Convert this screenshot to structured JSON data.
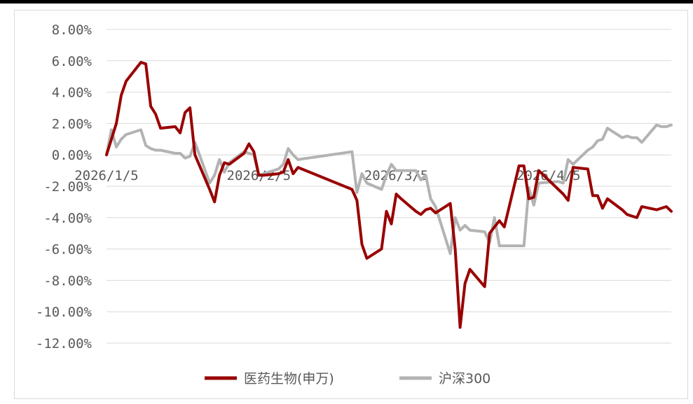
{
  "chart_data": {
    "type": "line",
    "title": "",
    "xlabel": "",
    "ylabel": "",
    "ylim": [
      -0.12,
      0.08
    ],
    "y_ticks": [
      "8.00%",
      "6.00%",
      "4.00%",
      "2.00%",
      "0.00%",
      "-2.00%",
      "-4.00%",
      "-6.00%",
      "-8.00%",
      "-10.00%",
      "-12.00%"
    ],
    "x_ticks": [
      "2026/1/5",
      "2026/2/5",
      "2026/3/5",
      "2026/4/5"
    ],
    "grid": true,
    "legend": "bottom",
    "series": [
      {
        "name": "医药生物(申万)",
        "color": "#990000",
        "x": [
          "2026-01-05",
          "2026-01-06",
          "2026-01-07",
          "2026-01-08",
          "2026-01-09",
          "2026-01-12",
          "2026-01-13",
          "2026-01-14",
          "2026-01-15",
          "2026-01-16",
          "2026-01-19",
          "2026-01-20",
          "2026-01-21",
          "2026-01-22",
          "2026-01-23",
          "2026-01-26",
          "2026-01-27",
          "2026-01-28",
          "2026-01-29",
          "2026-01-30",
          "2026-02-02",
          "2026-02-03",
          "2026-02-04",
          "2026-02-05",
          "2026-02-06",
          "2026-02-09",
          "2026-02-10",
          "2026-02-11",
          "2026-02-12",
          "2026-02-13",
          "2026-02-24",
          "2026-02-25",
          "2026-02-26",
          "2026-02-27",
          "2026-03-02",
          "2026-03-03",
          "2026-03-04",
          "2026-03-05",
          "2026-03-06",
          "2026-03-09",
          "2026-03-10",
          "2026-03-11",
          "2026-03-12",
          "2026-03-13",
          "2026-03-16",
          "2026-03-17",
          "2026-03-18",
          "2026-03-19",
          "2026-03-20",
          "2026-03-23",
          "2026-03-24",
          "2026-03-25",
          "2026-03-26",
          "2026-03-27",
          "2026-03-30",
          "2026-03-31",
          "2026-04-01",
          "2026-04-02",
          "2026-04-03",
          "2026-04-07",
          "2026-04-08",
          "2026-04-09",
          "2026-04-10",
          "2026-04-13",
          "2026-04-14",
          "2026-04-15",
          "2026-04-16",
          "2026-04-17",
          "2026-04-20",
          "2026-04-21",
          "2026-04-22",
          "2026-04-23",
          "2026-04-24",
          "2026-04-27",
          "2026-04-28",
          "2026-04-29",
          "2026-04-30"
        ],
        "values": [
          0.0,
          1.0,
          2.0,
          3.8,
          4.7,
          5.9,
          5.8,
          3.1,
          2.6,
          1.7,
          1.8,
          1.4,
          2.7,
          3.0,
          0.0,
          -2.2,
          -3.0,
          -1.3,
          -0.5,
          -0.6,
          0.1,
          0.7,
          0.2,
          -1.3,
          -1.3,
          -1.2,
          -1.1,
          -0.3,
          -1.2,
          -0.8,
          -2.2,
          -2.9,
          -5.7,
          -6.6,
          -6.0,
          -3.6,
          -4.4,
          -2.5,
          -2.8,
          -3.6,
          -3.8,
          -3.5,
          -3.4,
          -3.7,
          -3.1,
          -6.0,
          -11.0,
          -8.2,
          -7.3,
          -8.4,
          -5.0,
          -4.6,
          -4.2,
          -4.6,
          -0.7,
          -0.7,
          -2.8,
          -2.7,
          -1.0,
          -2.2,
          -2.5,
          -2.9,
          -0.8,
          -0.9,
          -2.6,
          -2.6,
          -3.4,
          -2.8,
          -3.5,
          -3.8,
          -3.9,
          -4.0,
          -3.3,
          -3.5,
          -3.4,
          -3.3,
          -3.6
        ]
      },
      {
        "name": "沪深300",
        "color": "#b3b3b3",
        "x": [
          "2026-01-05",
          "2026-01-06",
          "2026-01-07",
          "2026-01-08",
          "2026-01-09",
          "2026-01-12",
          "2026-01-13",
          "2026-01-14",
          "2026-01-15",
          "2026-01-16",
          "2026-01-19",
          "2026-01-20",
          "2026-01-21",
          "2026-01-22",
          "2026-01-23",
          "2026-01-26",
          "2026-01-27",
          "2026-01-28",
          "2026-01-29",
          "2026-01-30",
          "2026-02-02",
          "2026-02-03",
          "2026-02-04",
          "2026-02-05",
          "2026-02-06",
          "2026-02-09",
          "2026-02-10",
          "2026-02-11",
          "2026-02-12",
          "2026-02-13",
          "2026-02-24",
          "2026-02-25",
          "2026-02-26",
          "2026-02-27",
          "2026-03-02",
          "2026-03-03",
          "2026-03-04",
          "2026-03-05",
          "2026-03-06",
          "2026-03-09",
          "2026-03-10",
          "2026-03-11",
          "2026-03-12",
          "2026-03-13",
          "2026-03-16",
          "2026-03-17",
          "2026-03-18",
          "2026-03-19",
          "2026-03-20",
          "2026-03-23",
          "2026-03-24",
          "2026-03-25",
          "2026-03-26",
          "2026-03-27",
          "2026-03-30",
          "2026-03-31",
          "2026-04-01",
          "2026-04-02",
          "2026-04-03",
          "2026-04-07",
          "2026-04-08",
          "2026-04-09",
          "2026-04-10",
          "2026-04-13",
          "2026-04-14",
          "2026-04-15",
          "2026-04-16",
          "2026-04-17",
          "2026-04-20",
          "2026-04-21",
          "2026-04-22",
          "2026-04-23",
          "2026-04-24",
          "2026-04-27",
          "2026-04-28",
          "2026-04-29",
          "2026-04-30"
        ],
        "values": [
          0.0,
          1.6,
          0.5,
          1.0,
          1.3,
          1.6,
          0.6,
          0.4,
          0.3,
          0.3,
          0.1,
          0.1,
          -0.2,
          -0.1,
          0.8,
          -1.8,
          -1.3,
          -0.3,
          -1.1,
          -0.5,
          0.2,
          0.1,
          0.0,
          -1.3,
          -1.2,
          -0.9,
          -0.6,
          0.4,
          0.0,
          -0.3,
          0.2,
          -2.4,
          -1.2,
          -1.8,
          -2.2,
          -1.3,
          -0.6,
          -1.0,
          -1.0,
          -1.0,
          -1.6,
          -1.3,
          -2.8,
          -3.3,
          -6.3,
          -4.0,
          -4.8,
          -4.5,
          -4.8,
          -4.9,
          -5.6,
          -4.0,
          -5.8,
          -5.8,
          -5.8,
          -5.8,
          -2.1,
          -3.2,
          -1.8,
          -1.7,
          -1.8,
          -0.3,
          -0.6,
          0.3,
          0.5,
          0.9,
          1.0,
          1.7,
          1.1,
          1.2,
          1.1,
          1.1,
          0.8,
          1.9,
          1.8,
          1.8,
          1.9
        ]
      }
    ]
  }
}
